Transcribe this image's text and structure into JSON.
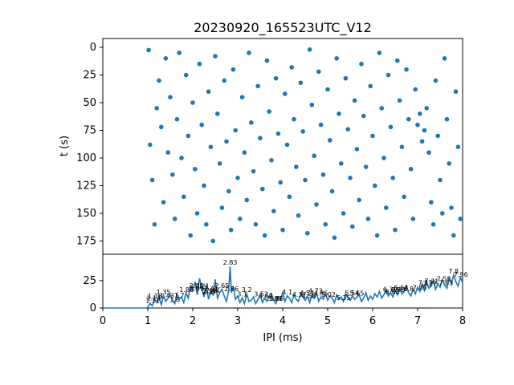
{
  "chart_data": [
    {
      "type": "scatter",
      "title": "20230920_165523UTC_V12",
      "xlabel": "",
      "ylabel": "t (s)",
      "xlim": [
        0,
        8
      ],
      "ylim": [
        187,
        -8
      ],
      "y_inverted": true,
      "y_ticks": [
        0,
        25,
        50,
        75,
        100,
        125,
        150,
        175
      ],
      "color": "#1f77b4",
      "series": [
        {
          "points": [
            [
              1.02,
              2.5
            ],
            [
              1.2,
              55
            ],
            [
              1.05,
              88
            ],
            [
              1.1,
              120
            ],
            [
              1.15,
              160
            ],
            [
              1.25,
              30
            ],
            [
              1.3,
              72
            ],
            [
              1.35,
              140
            ],
            [
              1.4,
              10
            ],
            [
              1.45,
              95
            ],
            [
              1.5,
              45
            ],
            [
              1.55,
              115
            ],
            [
              1.6,
              155
            ],
            [
              1.65,
              65
            ],
            [
              1.7,
              5
            ],
            [
              1.75,
              100
            ],
            [
              1.8,
              135
            ],
            [
              1.85,
              25
            ],
            [
              1.9,
              80
            ],
            [
              1.95,
              170
            ],
            [
              2.0,
              50
            ],
            [
              2.05,
              110
            ],
            [
              2.1,
              150
            ],
            [
              2.15,
              15
            ],
            [
              2.2,
              70
            ],
            [
              2.25,
              125
            ],
            [
              2.3,
              160
            ],
            [
              2.35,
              40
            ],
            [
              2.4,
              90
            ],
            [
              2.45,
              175
            ],
            [
              2.5,
              8
            ],
            [
              2.55,
              60
            ],
            [
              2.6,
              105
            ],
            [
              2.65,
              145
            ],
            [
              2.7,
              30
            ],
            [
              2.75,
              85
            ],
            [
              2.8,
              130
            ],
            [
              2.85,
              165
            ],
            [
              2.9,
              20
            ],
            [
              2.95,
              75
            ],
            [
              3.0,
              118
            ],
            [
              3.05,
              155
            ],
            [
              3.1,
              45
            ],
            [
              3.15,
              95
            ],
            [
              3.2,
              138
            ],
            [
              3.25,
              5
            ],
            [
              3.3,
              68
            ],
            [
              3.35,
              112
            ],
            [
              3.4,
              160
            ],
            [
              3.45,
              35
            ],
            [
              3.5,
              82
            ],
            [
              3.55,
              128
            ],
            [
              3.6,
              170
            ],
            [
              3.65,
              12
            ],
            [
              3.7,
              58
            ],
            [
              3.75,
              102
            ],
            [
              3.8,
              148
            ],
            [
              3.85,
              28
            ],
            [
              3.9,
              78
            ],
            [
              3.95,
              122
            ],
            [
              4.0,
              165
            ],
            [
              4.05,
              42
            ],
            [
              4.1,
              88
            ],
            [
              4.15,
              135
            ],
            [
              4.2,
              18
            ],
            [
              4.25,
              65
            ],
            [
              4.3,
              108
            ],
            [
              4.35,
              152
            ],
            [
              4.4,
              32
            ],
            [
              4.45,
              76
            ],
            [
              4.5,
              120
            ],
            [
              4.55,
              168
            ],
            [
              4.6,
              2
            ],
            [
              4.65,
              52
            ],
            [
              4.7,
              98
            ],
            [
              4.75,
              142
            ],
            [
              4.8,
              22
            ],
            [
              4.85,
              70
            ],
            [
              4.9,
              115
            ],
            [
              4.95,
              160
            ],
            [
              5.0,
              38
            ],
            [
              5.05,
              84
            ],
            [
              5.1,
              130
            ],
            [
              5.15,
              172
            ],
            [
              5.2,
              10
            ],
            [
              5.25,
              60
            ],
            [
              5.3,
              105
            ],
            [
              5.35,
              150
            ],
            [
              5.4,
              28
            ],
            [
              5.45,
              74
            ],
            [
              5.5,
              118
            ],
            [
              5.55,
              162
            ],
            [
              5.6,
              48
            ],
            [
              5.65,
              92
            ],
            [
              5.7,
              138
            ],
            [
              5.75,
              15
            ],
            [
              5.8,
              62
            ],
            [
              5.85,
              108
            ],
            [
              5.9,
              155
            ],
            [
              5.95,
              35
            ],
            [
              6.0,
              80
            ],
            [
              6.05,
              125
            ],
            [
              6.1,
              170
            ],
            [
              6.15,
              5
            ],
            [
              6.2,
              55
            ],
            [
              6.25,
              100
            ],
            [
              6.3,
              145
            ],
            [
              6.35,
              25
            ],
            [
              6.4,
              72
            ],
            [
              6.45,
              118
            ],
            [
              6.5,
              165
            ],
            [
              6.55,
              12
            ],
            [
              6.6,
              48
            ],
            [
              6.65,
              90
            ],
            [
              6.7,
              135
            ],
            [
              6.75,
              20
            ],
            [
              6.8,
              65
            ],
            [
              6.85,
              110
            ],
            [
              6.9,
              155
            ],
            [
              6.95,
              38
            ],
            [
              7.0,
              70
            ],
            [
              7.05,
              60
            ],
            [
              7.1,
              85
            ],
            [
              7.15,
              75
            ],
            [
              7.2,
              55
            ],
            [
              7.25,
              95
            ],
            [
              7.3,
              140
            ],
            [
              7.35,
              160
            ],
            [
              7.4,
              30
            ],
            [
              7.45,
              80
            ],
            [
              7.5,
              120
            ],
            [
              7.55,
              150
            ],
            [
              7.6,
              10
            ],
            [
              7.65,
              65
            ],
            [
              7.7,
              105
            ],
            [
              7.75,
              145
            ],
            [
              7.8,
              170
            ],
            [
              7.85,
              40
            ],
            [
              7.9,
              90
            ],
            [
              7.95,
              155
            ]
          ]
        }
      ]
    },
    {
      "type": "line",
      "title": "",
      "xlabel": "IPI (ms)",
      "ylabel": "",
      "xlim": [
        0,
        8
      ],
      "ylim": [
        0,
        49
      ],
      "x_ticks": [
        0,
        1,
        2,
        3,
        4,
        5,
        6,
        7,
        8
      ],
      "y_ticks": [
        0,
        25
      ],
      "color": "#1f77b4",
      "series": [
        {
          "x": [
            0,
            0.5,
            0.99,
            1.0,
            1.05,
            1.1,
            1.15,
            1.2,
            1.25,
            1.3,
            1.35,
            1.4,
            1.45,
            1.5,
            1.55,
            1.6,
            1.65,
            1.7,
            1.75,
            1.8,
            1.85,
            1.9,
            1.95,
            2.0,
            2.05,
            2.1,
            2.15,
            2.2,
            2.25,
            2.3,
            2.35,
            2.4,
            2.45,
            2.5,
            2.55,
            2.6,
            2.65,
            2.7,
            2.75,
            2.8,
            2.83,
            2.86,
            2.9,
            2.95,
            3.0,
            3.05,
            3.1,
            3.15,
            3.2,
            3.25,
            3.3,
            3.35,
            3.4,
            3.45,
            3.5,
            3.55,
            3.6,
            3.65,
            3.7,
            3.75,
            3.8,
            3.85,
            3.9,
            3.95,
            4.0,
            4.05,
            4.1,
            4.15,
            4.2,
            4.25,
            4.3,
            4.35,
            4.4,
            4.45,
            4.5,
            4.55,
            4.6,
            4.65,
            4.7,
            4.75,
            4.8,
            4.85,
            4.9,
            4.95,
            5.0,
            5.05,
            5.1,
            5.15,
            5.2,
            5.25,
            5.3,
            5.35,
            5.4,
            5.45,
            5.5,
            5.55,
            5.6,
            5.65,
            5.7,
            5.75,
            5.8,
            5.85,
            5.9,
            5.95,
            6.0,
            6.05,
            6.1,
            6.15,
            6.2,
            6.25,
            6.3,
            6.35,
            6.4,
            6.45,
            6.5,
            6.55,
            6.6,
            6.65,
            6.7,
            6.75,
            6.8,
            6.85,
            6.9,
            6.95,
            7.0,
            7.05,
            7.1,
            7.15,
            7.2,
            7.25,
            7.3,
            7.35,
            7.4,
            7.45,
            7.5,
            7.55,
            7.6,
            7.65,
            7.7,
            7.75,
            7.8,
            7.85,
            7.9,
            7.95,
            8.0
          ],
          "y": [
            0,
            0,
            0,
            1,
            4,
            2,
            8,
            5,
            10,
            3,
            11,
            6,
            9,
            12,
            7,
            4,
            13,
            8,
            10,
            5,
            14,
            9,
            20,
            16,
            24,
            12,
            27,
            18,
            10,
            21,
            8,
            15,
            12,
            26,
            9,
            14,
            17,
            11,
            6,
            16,
            38,
            14,
            20,
            8,
            11,
            5,
            9,
            4,
            13,
            6,
            7,
            10,
            4,
            8,
            12,
            5,
            9,
            6,
            11,
            13,
            7,
            4,
            10,
            8,
            14,
            6,
            11,
            9,
            5,
            12,
            8,
            6,
            13,
            10,
            7,
            11,
            5,
            12,
            9,
            14,
            6,
            10,
            8,
            13,
            7,
            11,
            9,
            5,
            12,
            8,
            10,
            6,
            13,
            9,
            7,
            11,
            8,
            10,
            12,
            6,
            9,
            14,
            7,
            11,
            8,
            13,
            10,
            15,
            9,
            12,
            17,
            11,
            14,
            10,
            16,
            12,
            18,
            13,
            15,
            20,
            14,
            11,
            17,
            13,
            19,
            15,
            22,
            16,
            24,
            18,
            20,
            25,
            17,
            22,
            19,
            26,
            21,
            18,
            27,
            22,
            30,
            24,
            20,
            28,
            23
          ]
        }
      ],
      "annotations": [
        "1.11",
        "1.13",
        "1.16",
        "1.35",
        "1.43",
        "1.6",
        "1.7",
        "1.86",
        "2.08",
        "2.09",
        "2.21",
        "2.37",
        "2.38",
        "2.41",
        "2.44",
        "2.65",
        "2.83",
        "2.86",
        "3.1",
        "3.2",
        "3.52",
        "3.62",
        "3.83",
        "3.86",
        "4.1",
        "4.37",
        "4.54",
        "4.58",
        "4.73",
        "4.85",
        "5.02",
        "5.35",
        "5.54",
        "5.65",
        "6.39",
        "6.44",
        "6.56",
        "6.63",
        "6.8",
        "7.05",
        "7.17",
        "7.27",
        "7.31",
        "7.58",
        "7.63",
        "7.8",
        "7.96"
      ]
    }
  ]
}
